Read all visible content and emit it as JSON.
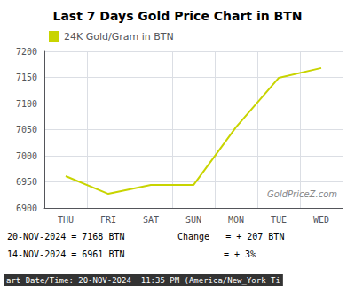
{
  "chart_data": {
    "type": "line",
    "title": "Last 7 Days Gold Price Chart in BTN",
    "categories": [
      "THU",
      "FRI",
      "SAT",
      "SUN",
      "MON",
      "TUE",
      "WED"
    ],
    "series": [
      {
        "name": "24K Gold/Gram in BTN",
        "color": "#c8d400",
        "values": [
          6961,
          6927,
          6944,
          6944,
          7055,
          7149,
          7168
        ]
      }
    ],
    "ylim": [
      6900,
      7200
    ],
    "yticks": [
      6900,
      6950,
      7000,
      7050,
      7100,
      7150,
      7200
    ],
    "grid": true,
    "legend": "upper left",
    "annotations": [
      "GoldPriceZ.com",
      "20-NOV-2024 = 7168 BTN",
      "14-NOV-2024 = 6961 BTN",
      "Change   = + 207 BTN",
      "= + 3%",
      "art Date/Time: 20-NOV-2024  11:35 PM (America/New_York Ti"
    ]
  }
}
